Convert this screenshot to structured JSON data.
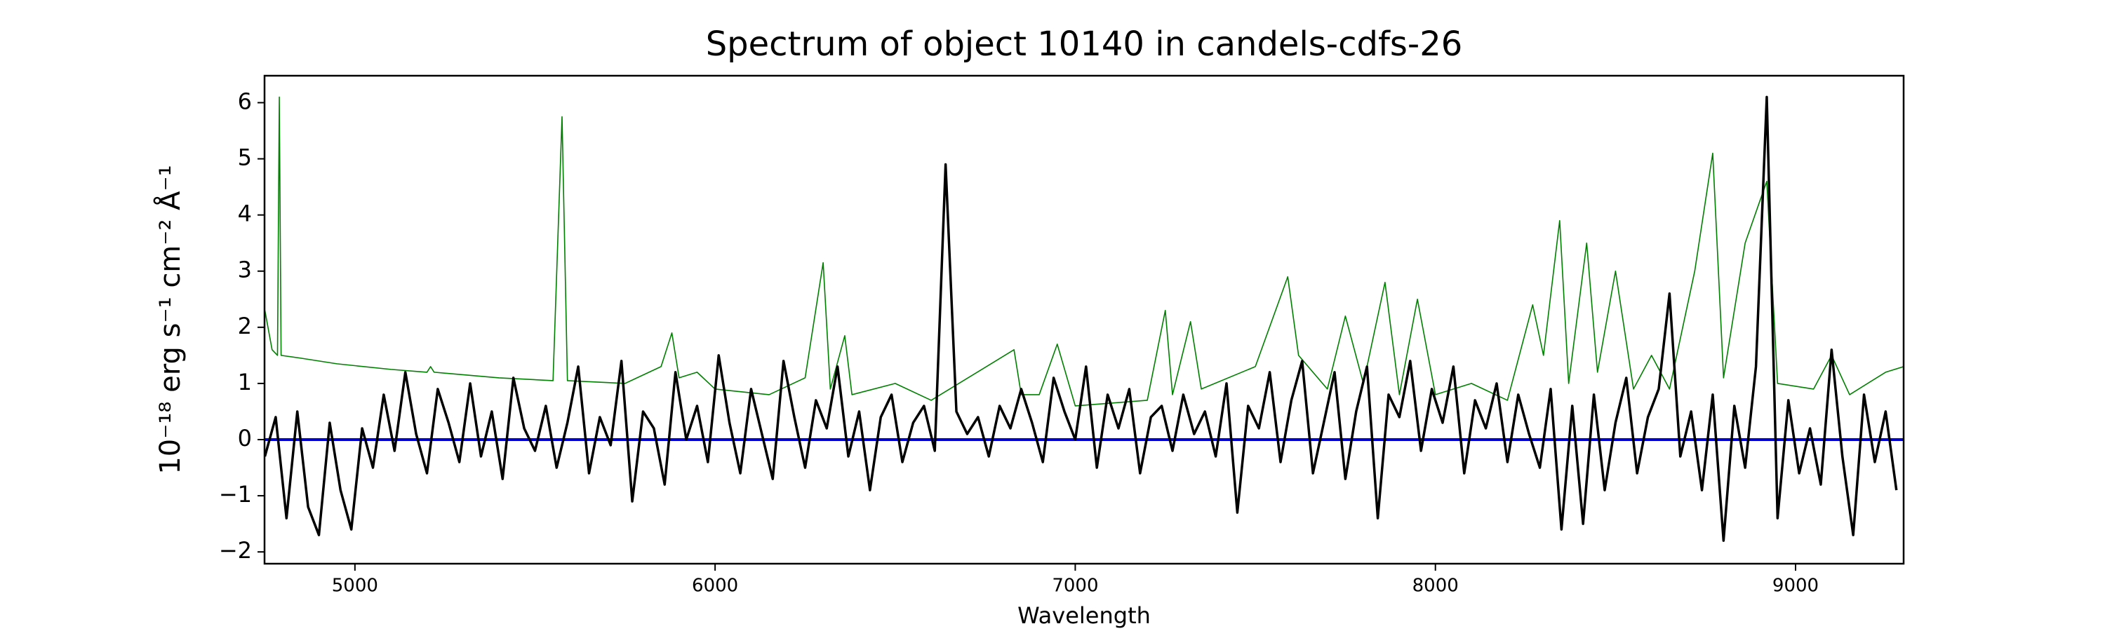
{
  "chart_data": {
    "type": "line",
    "title": "Spectrum of object 10140 in candels-cdfs-26",
    "x_label": "Wavelength",
    "y_label": "10⁻¹⁸ erg s⁻¹ cm⁻² Å⁻¹",
    "xlim": [
      4749,
      9300
    ],
    "ylim": [
      -2.21,
      6.48
    ],
    "xticks": [
      5000,
      6000,
      7000,
      8000,
      9000
    ],
    "yticks": [
      -2,
      -1,
      0,
      1,
      2,
      3,
      4,
      5,
      6
    ],
    "grid": false,
    "series": [
      {
        "color": "#008000",
        "x": [
          4750,
          4770,
          4785,
          4790,
          4795,
          4850,
          4950,
          5100,
          5200,
          5210,
          5220,
          5400,
          5550,
          5575,
          5590,
          5750,
          5850,
          5880,
          5900,
          5950,
          6000,
          6150,
          6250,
          6300,
          6320,
          6360,
          6380,
          6500,
          6600,
          6830,
          6850,
          6900,
          6950,
          7000,
          7200,
          7250,
          7270,
          7320,
          7350,
          7500,
          7590,
          7620,
          7700,
          7750,
          7800,
          7860,
          7900,
          7950,
          8000,
          8100,
          8200,
          8270,
          8300,
          8345,
          8370,
          8420,
          8450,
          8500,
          8550,
          8600,
          8650,
          8720,
          8770,
          8800,
          8860,
          8920,
          8950,
          9050,
          9100,
          9150,
          9250,
          9300
        ],
        "values": [
          2.3,
          1.6,
          1.5,
          6.1,
          1.5,
          1.45,
          1.35,
          1.25,
          1.2,
          1.3,
          1.2,
          1.1,
          1.05,
          5.75,
          1.05,
          1.0,
          1.3,
          1.9,
          1.1,
          1.2,
          0.9,
          0.8,
          1.1,
          3.15,
          0.9,
          1.85,
          0.8,
          1.0,
          0.7,
          1.6,
          0.8,
          0.8,
          1.7,
          0.6,
          0.7,
          2.3,
          0.8,
          2.1,
          0.9,
          1.3,
          2.9,
          1.5,
          0.9,
          2.2,
          1.0,
          2.8,
          0.8,
          2.5,
          0.8,
          1.0,
          0.7,
          2.4,
          1.5,
          3.9,
          1.0,
          3.5,
          1.2,
          3.0,
          0.9,
          1.5,
          0.9,
          3.0,
          5.1,
          1.1,
          3.5,
          4.6,
          1.0,
          0.9,
          1.5,
          0.8,
          1.2,
          1.3
        ],
        "width": 1.6
      },
      {
        "color": "#0000cc",
        "x": [
          4749,
          9300
        ],
        "values": [
          0,
          0
        ],
        "width": 4
      },
      {
        "color": "#000000",
        "x": [
          4750,
          4780,
          4810,
          4840,
          4870,
          4900,
          4930,
          4960,
          4990,
          5020,
          5050,
          5080,
          5110,
          5140,
          5170,
          5200,
          5230,
          5260,
          5290,
          5320,
          5350,
          5380,
          5410,
          5440,
          5470,
          5500,
          5530,
          5560,
          5590,
          5620,
          5650,
          5680,
          5710,
          5740,
          5770,
          5800,
          5830,
          5860,
          5890,
          5920,
          5950,
          5980,
          6010,
          6040,
          6070,
          6100,
          6130,
          6160,
          6190,
          6220,
          6250,
          6280,
          6310,
          6340,
          6370,
          6400,
          6430,
          6460,
          6490,
          6520,
          6550,
          6580,
          6610,
          6640,
          6670,
          6700,
          6730,
          6760,
          6790,
          6820,
          6850,
          6880,
          6910,
          6940,
          6970,
          7000,
          7030,
          7060,
          7090,
          7120,
          7150,
          7180,
          7210,
          7240,
          7270,
          7300,
          7330,
          7360,
          7390,
          7420,
          7450,
          7480,
          7510,
          7540,
          7570,
          7600,
          7630,
          7660,
          7690,
          7720,
          7750,
          7780,
          7810,
          7840,
          7870,
          7900,
          7930,
          7960,
          7990,
          8020,
          8050,
          8080,
          8110,
          8140,
          8170,
          8200,
          8230,
          8260,
          8290,
          8320,
          8350,
          8380,
          8410,
          8440,
          8470,
          8500,
          8530,
          8560,
          8590,
          8620,
          8650,
          8680,
          8710,
          8740,
          8770,
          8800,
          8830,
          8860,
          8890,
          8920,
          8950,
          8980,
          9010,
          9040,
          9070,
          9100,
          9130,
          9160,
          9190,
          9220,
          9250,
          9280
        ],
        "values": [
          -0.3,
          0.4,
          -1.4,
          0.5,
          -1.2,
          -1.7,
          0.3,
          -0.9,
          -1.6,
          0.2,
          -0.5,
          0.8,
          -0.2,
          1.2,
          0.1,
          -0.6,
          0.9,
          0.3,
          -0.4,
          1.0,
          -0.3,
          0.5,
          -0.7,
          1.1,
          0.2,
          -0.2,
          0.6,
          -0.5,
          0.3,
          1.3,
          -0.6,
          0.4,
          -0.1,
          1.4,
          -1.1,
          0.5,
          0.2,
          -0.8,
          1.2,
          0.0,
          0.6,
          -0.4,
          1.5,
          0.3,
          -0.6,
          0.9,
          0.1,
          -0.7,
          1.4,
          0.4,
          -0.5,
          0.7,
          0.2,
          1.3,
          -0.3,
          0.5,
          -0.9,
          0.4,
          0.8,
          -0.4,
          0.3,
          0.6,
          -0.2,
          4.9,
          0.5,
          0.1,
          0.4,
          -0.3,
          0.6,
          0.2,
          0.9,
          0.3,
          -0.4,
          1.1,
          0.5,
          0.0,
          1.3,
          -0.5,
          0.8,
          0.2,
          0.9,
          -0.6,
          0.4,
          0.6,
          -0.2,
          0.8,
          0.1,
          0.5,
          -0.3,
          1.0,
          -1.3,
          0.6,
          0.2,
          1.2,
          -0.4,
          0.7,
          1.4,
          -0.6,
          0.3,
          1.2,
          -0.7,
          0.5,
          1.3,
          -1.4,
          0.8,
          0.4,
          1.4,
          -0.2,
          0.9,
          0.3,
          1.3,
          -0.6,
          0.7,
          0.2,
          1.0,
          -0.4,
          0.8,
          0.1,
          -0.5,
          0.9,
          -1.6,
          0.6,
          -1.5,
          0.8,
          -0.9,
          0.3,
          1.1,
          -0.6,
          0.4,
          0.9,
          2.6,
          -0.3,
          0.5,
          -0.9,
          0.8,
          -1.8,
          0.6,
          -0.5,
          1.3,
          6.1,
          -1.4,
          0.7,
          -0.6,
          0.2,
          -0.8,
          1.6,
          -0.3,
          -1.7,
          0.8,
          -0.4,
          0.5,
          -0.9
        ],
        "width": 3.5
      }
    ]
  }
}
